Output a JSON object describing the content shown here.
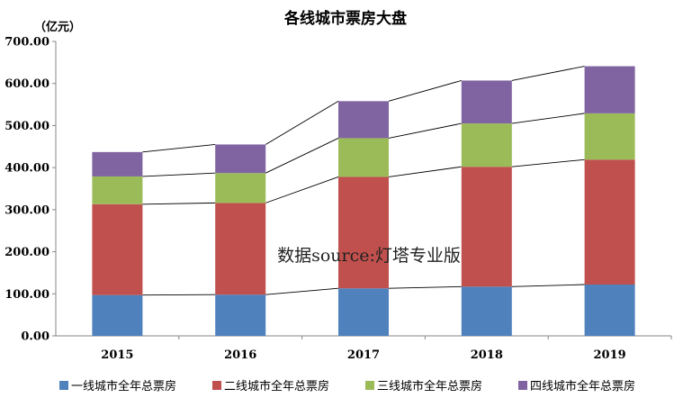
{
  "chart_data": {
    "type": "bar",
    "stacked": true,
    "title": "各线城市票房大盘",
    "unit_label": "（亿元）",
    "watermark": "数据source:灯塔专业版",
    "categories": [
      "2015",
      "2016",
      "2017",
      "2018",
      "2019"
    ],
    "ylim": [
      0,
      700
    ],
    "yticks": [
      "0.00",
      "100.00",
      "200.00",
      "300.00",
      "400.00",
      "500.00",
      "600.00",
      "700.00"
    ],
    "grid": false,
    "connector_lines": true,
    "legend_position": "bottom",
    "series": [
      {
        "name": "一线城市全年总票房",
        "color": "#4f81bd",
        "values": [
          97,
          98,
          113,
          117,
          122
        ]
      },
      {
        "name": "二线城市全年总票房",
        "color": "#c0504d",
        "values": [
          216,
          218,
          265,
          285,
          297
        ]
      },
      {
        "name": "三线城市全年总票房",
        "color": "#9bbb59",
        "values": [
          66,
          71,
          92,
          103,
          110
        ]
      },
      {
        "name": "四线城市全年总票房",
        "color": "#8064a2",
        "values": [
          58,
          68,
          88,
          102,
          112
        ]
      }
    ]
  }
}
